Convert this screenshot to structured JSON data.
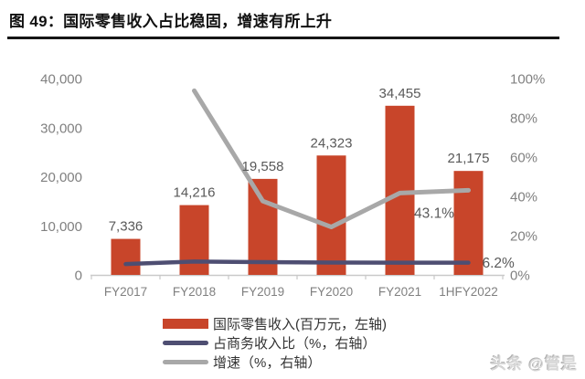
{
  "header": {
    "title": "图 49：国际零售收入占比稳固，增速有所上升"
  },
  "watermark": "头条 @管是",
  "colors": {
    "bar": "#C8452A",
    "ratio_line": "#4E4E72",
    "growth_line": "#A8A8A8",
    "axis_text": "#808080",
    "data_label": "#595959",
    "axis_line": "#C9C9C9",
    "title": "#111111",
    "watermark": "#D6D6D6"
  },
  "chart_data": {
    "type": "bar+line combo",
    "categories": [
      "FY2017",
      "FY2018",
      "FY2019",
      "FY2020",
      "FY2021",
      "1HFY2022"
    ],
    "series": [
      {
        "name": "国际零售收入(百万元，左轴)",
        "type": "bar",
        "axis": "left",
        "values": [
          7336,
          14216,
          19558,
          24323,
          34455,
          21175
        ],
        "labels": [
          "7,336",
          "14,216",
          "19,558",
          "24,323",
          "34,455",
          "21,175"
        ]
      },
      {
        "name": "占商务收入比（%，右轴）",
        "type": "line",
        "axis": "right",
        "values": [
          5.5,
          6.8,
          6.5,
          6.3,
          6.2,
          6.2
        ]
      },
      {
        "name": "增速（%，右轴）",
        "type": "line",
        "axis": "right",
        "values": [
          null,
          93.8,
          37.6,
          24.4,
          41.7,
          43.1
        ]
      }
    ],
    "annotations": {
      "growth_last": "43.1%",
      "ratio_last": "6.2%"
    },
    "left_axis": {
      "min": 0,
      "max": 40000,
      "ticks": [
        {
          "label": "40,000",
          "value": 40000
        },
        {
          "label": "30,000",
          "value": 30000
        },
        {
          "label": "20,000",
          "value": 20000
        },
        {
          "label": "10,000",
          "value": 10000
        },
        {
          "label": "0",
          "value": 0
        }
      ]
    },
    "right_axis": {
      "min": 0,
      "max": 100,
      "ticks": [
        {
          "label": "100%",
          "value": 100
        },
        {
          "label": "80%",
          "value": 80
        },
        {
          "label": "60%",
          "value": 60
        },
        {
          "label": "40%",
          "value": 40
        },
        {
          "label": "20%",
          "value": 20
        },
        {
          "label": "0%",
          "value": 0
        }
      ]
    },
    "legend": [
      {
        "label": "国际零售收入(百万元，左轴)",
        "swatch": "bar"
      },
      {
        "label": "占商务收入比（%，右轴）",
        "swatch": "line-ratio"
      },
      {
        "label": "增速（%，右轴）",
        "swatch": "line-growth"
      }
    ],
    "grid": false,
    "legend_position": "bottom-left"
  }
}
